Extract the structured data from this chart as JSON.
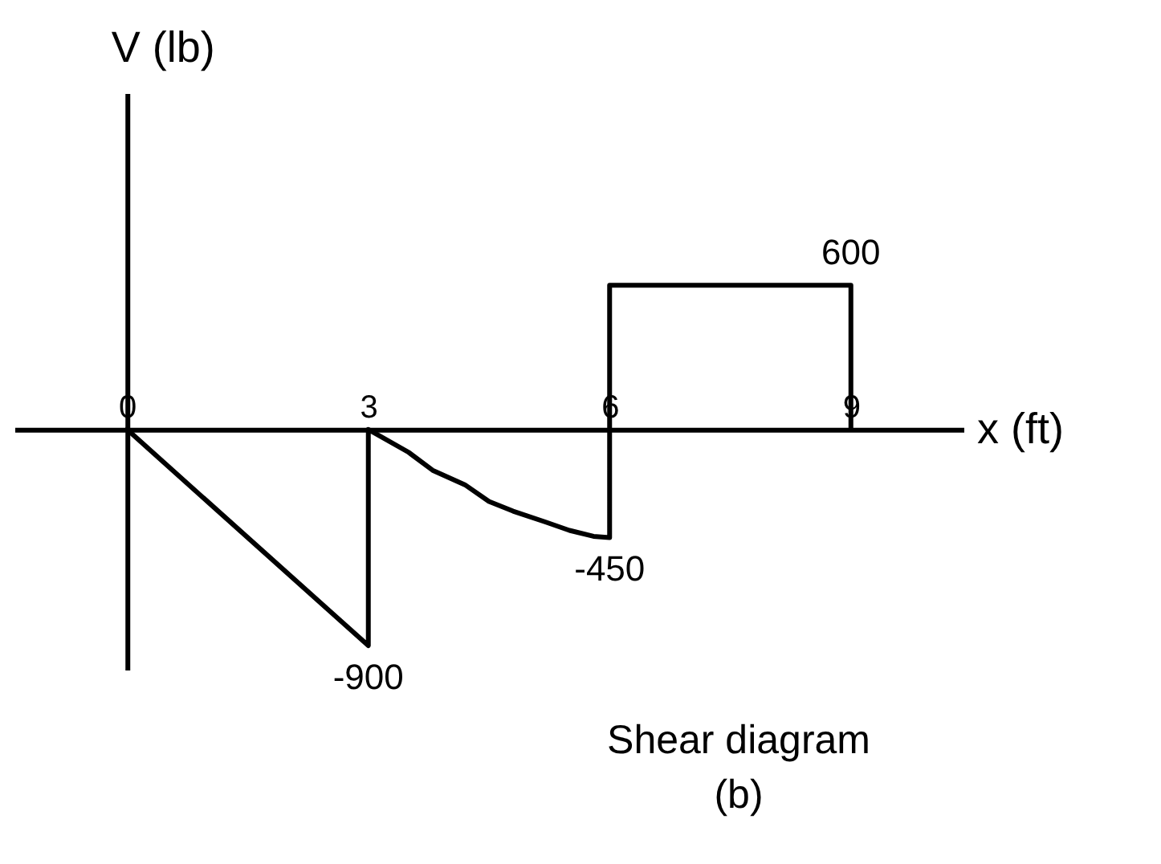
{
  "chart_data": {
    "type": "line",
    "xlabel": "x (ft)",
    "ylabel": "V (lb)",
    "annotations": [
      "Shear diagram",
      "(b)"
    ],
    "x": [
      0,
      3,
      3,
      3.5,
      3.8,
      4.2,
      4.5,
      4.8,
      5.2,
      5.5,
      5.8,
      6,
      6,
      9,
      9
    ],
    "series": [
      {
        "color": "#000000",
        "values": [
          0,
          -900,
          0,
          -95,
          -170,
          -230,
          -300,
          -340,
          -385,
          -420,
          -445,
          -450,
          600,
          600,
          0
        ],
        "value_labels": [
          null,
          "-900",
          null,
          null,
          null,
          null,
          null,
          null,
          null,
          null,
          null,
          "-450",
          null,
          "600",
          null
        ]
      }
    ],
    "xlim": [
      -1.4,
      10.4
    ],
    "ylim": [
      -1000,
      1400
    ],
    "xticks": [
      0,
      3,
      6,
      9
    ],
    "tick_labels": "x"
  }
}
